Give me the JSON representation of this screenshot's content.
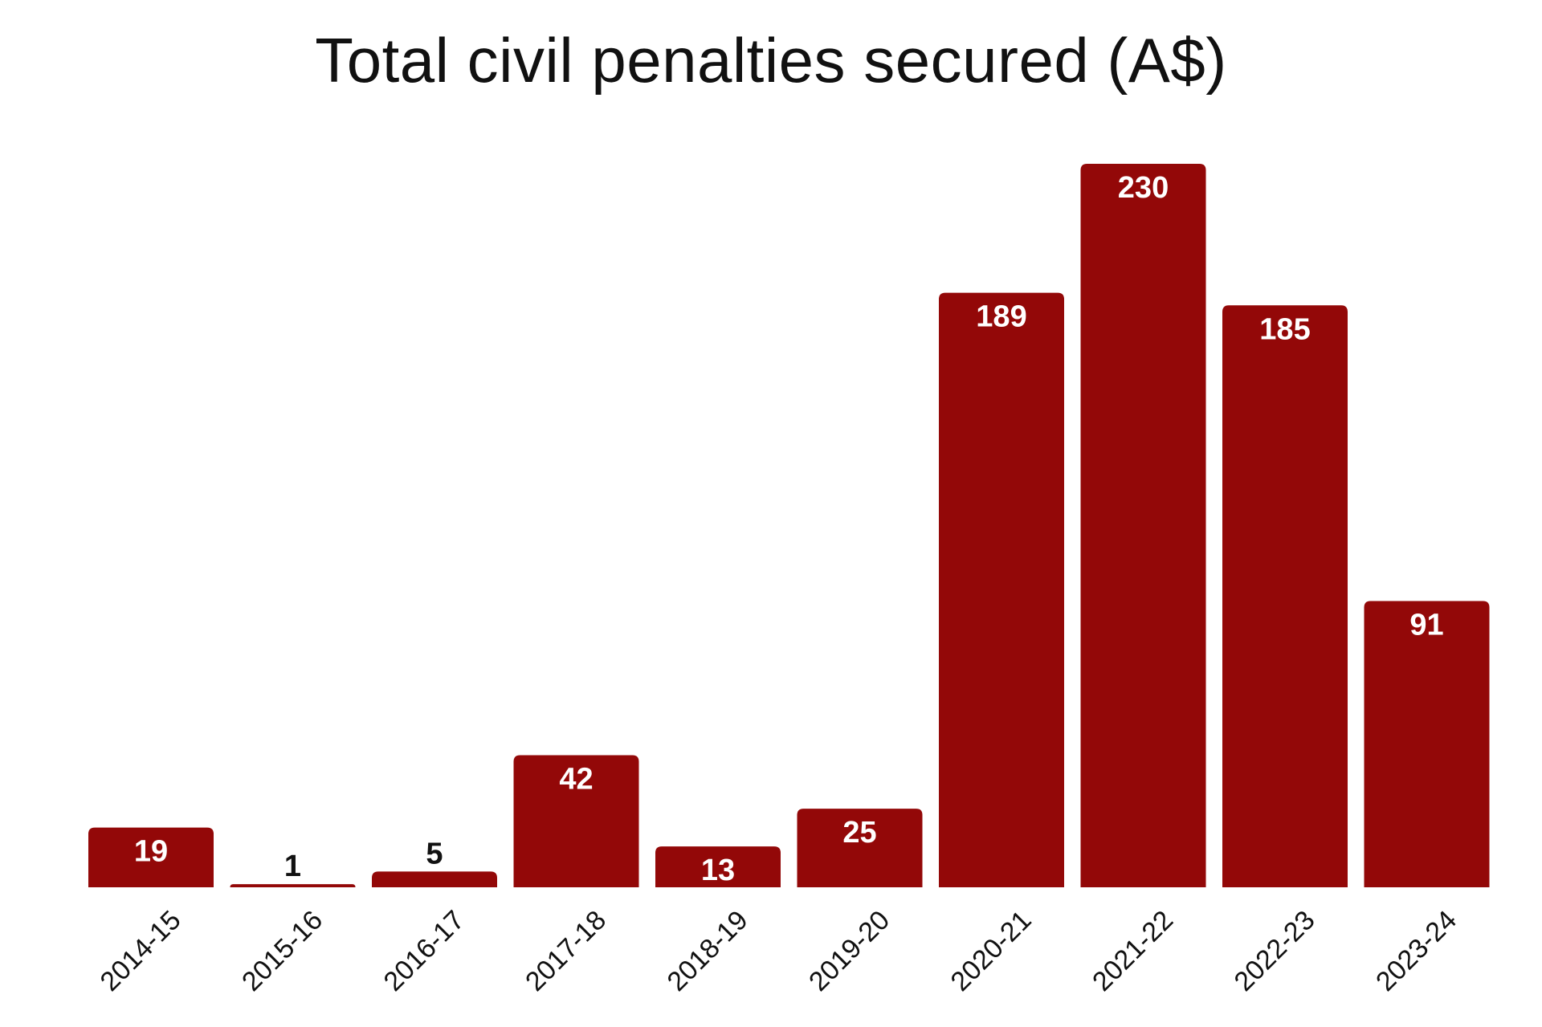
{
  "chart_data": {
    "type": "bar",
    "title": "Total civil penalties secured (A$)",
    "xlabel": "",
    "ylabel": "",
    "categories": [
      "2014-15",
      "2015-16",
      "2016-17",
      "2017-18",
      "2018-19",
      "2019-20",
      "2020-21",
      "2021-22",
      "2022-23",
      "2023-24"
    ],
    "values": [
      19,
      1,
      5,
      42,
      13,
      25,
      189,
      230,
      185,
      91
    ],
    "data_labels": [
      "19",
      "1",
      "5",
      "42",
      "13",
      "25",
      "189",
      "230",
      "185",
      "91"
    ],
    "ylim": [
      0,
      230
    ],
    "grid": false,
    "legend": "none",
    "bar_color": "#930808",
    "label_inside_color": "#ffffff",
    "label_outside_color": "#111111"
  }
}
